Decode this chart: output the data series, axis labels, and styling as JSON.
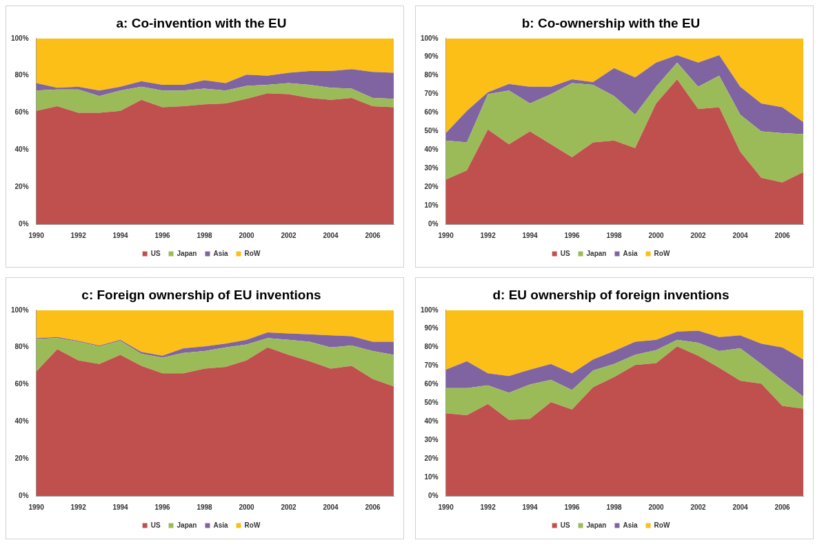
{
  "chart_data": [
    {
      "type": "area",
      "title": "a: Co-invention with the EU",
      "stacked": true,
      "legend": "bottom",
      "x": [
        1990,
        1991,
        1992,
        1993,
        1994,
        1995,
        1996,
        1997,
        1998,
        1999,
        2000,
        2001,
        2002,
        2003,
        2004,
        2005,
        2006,
        2007
      ],
      "xlim": [
        1990,
        2007
      ],
      "xticks": [
        1990,
        1992,
        1994,
        1996,
        1998,
        2000,
        2002,
        2004,
        2006
      ],
      "ylim": [
        0,
        100
      ],
      "yticks": [
        {
          "value": 0,
          "label": "0%"
        },
        {
          "value": 20,
          "label": "20%"
        },
        {
          "value": 40,
          "label": "40%"
        },
        {
          "value": 60,
          "label": "60%"
        },
        {
          "value": 80,
          "label": "80%"
        },
        {
          "value": 100,
          "label": "100%"
        }
      ],
      "series": [
        {
          "name": "US",
          "color": "#c0504d",
          "values": [
            61,
            63.5,
            60,
            60,
            61,
            67,
            63,
            63.5,
            64.5,
            65,
            67.5,
            70.5,
            70,
            68,
            67,
            68,
            63.5,
            63
          ]
        },
        {
          "name": "Japan",
          "color": "#9bbb59",
          "values": [
            11,
            9,
            12.5,
            9,
            11,
            7,
            9,
            8.5,
            8.5,
            7,
            7,
            4.5,
            6,
            7,
            6.5,
            5,
            4.5,
            4.5
          ]
        },
        {
          "name": "Asia",
          "color": "#8064a2",
          "values": [
            4,
            1,
            1.5,
            3,
            2,
            3,
            3,
            3,
            4.5,
            4,
            6,
            5,
            5.5,
            7.5,
            9,
            10.5,
            14,
            14
          ]
        },
        {
          "name": "RoW",
          "color": "#fbbf17",
          "values": [
            24,
            26.5,
            26,
            28,
            26,
            23,
            25,
            25,
            22.5,
            24,
            19.5,
            20,
            18.5,
            17.5,
            17.5,
            16.5,
            18,
            18.5
          ]
        }
      ]
    },
    {
      "type": "area",
      "title": "b: Co-ownership with the EU",
      "stacked": true,
      "legend": "bottom",
      "x": [
        1990,
        1991,
        1992,
        1993,
        1994,
        1995,
        1996,
        1997,
        1998,
        1999,
        2000,
        2001,
        2002,
        2003,
        2004,
        2005,
        2006,
        2007
      ],
      "xlim": [
        1990,
        2007
      ],
      "xticks": [
        1990,
        1992,
        1994,
        1996,
        1998,
        2000,
        2002,
        2004,
        2006
      ],
      "ylim": [
        0,
        100
      ],
      "yticks": [
        {
          "value": 0,
          "label": "0%"
        },
        {
          "value": 10,
          "label": "10%"
        },
        {
          "value": 20,
          "label": "20%"
        },
        {
          "value": 30,
          "label": "30%"
        },
        {
          "value": 40,
          "label": "40%"
        },
        {
          "value": 50,
          "label": "50%"
        },
        {
          "value": 60,
          "label": "60%"
        },
        {
          "value": 70,
          "label": "70%"
        },
        {
          "value": 80,
          "label": "80%"
        },
        {
          "value": 90,
          "label": "90%"
        },
        {
          "value": 100,
          "label": "100%"
        }
      ],
      "series": [
        {
          "name": "US",
          "color": "#c0504d",
          "values": [
            24,
            29,
            51,
            43,
            50,
            43,
            36,
            44,
            45,
            41,
            65,
            78,
            62,
            63,
            39,
            25,
            22.5,
            28
          ]
        },
        {
          "name": "Japan",
          "color": "#9bbb59",
          "values": [
            21,
            15,
            19,
            29,
            15,
            27,
            40,
            31,
            24,
            18,
            9,
            9,
            12,
            17,
            20,
            25,
            26.5,
            20.5
          ]
        },
        {
          "name": "Asia",
          "color": "#8064a2",
          "values": [
            4,
            17,
            1,
            3.5,
            9,
            4,
            2,
            1.5,
            15,
            20,
            13,
            4,
            13,
            11,
            15,
            15,
            14,
            6.5
          ]
        },
        {
          "name": "RoW",
          "color": "#fbbf17",
          "values": [
            51,
            39,
            29,
            24.5,
            26,
            26,
            22,
            23.5,
            16,
            21,
            13,
            9,
            13,
            9,
            26,
            35,
            37,
            45
          ]
        }
      ]
    },
    {
      "type": "area",
      "title": "c: Foreign ownership of EU inventions",
      "stacked": true,
      "legend": "bottom",
      "x": [
        1990,
        1991,
        1992,
        1993,
        1994,
        1995,
        1996,
        1997,
        1998,
        1999,
        2000,
        2001,
        2002,
        2003,
        2004,
        2005,
        2006,
        2007
      ],
      "xlim": [
        1990,
        2007
      ],
      "xticks": [
        1990,
        1992,
        1994,
        1996,
        1998,
        2000,
        2002,
        2004,
        2006
      ],
      "ylim": [
        0,
        100
      ],
      "yticks": [
        {
          "value": 0,
          "label": "0%"
        },
        {
          "value": 20,
          "label": "20%"
        },
        {
          "value": 40,
          "label": "40%"
        },
        {
          "value": 60,
          "label": "60%"
        },
        {
          "value": 80,
          "label": "80%"
        },
        {
          "value": 100,
          "label": "100%"
        }
      ],
      "series": [
        {
          "name": "US",
          "color": "#c0504d",
          "values": [
            67,
            79,
            73,
            71,
            76,
            70,
            66,
            66,
            68.5,
            69.5,
            73,
            80,
            76,
            72.5,
            68.5,
            70,
            63,
            59
          ]
        },
        {
          "name": "Japan",
          "color": "#9bbb59",
          "values": [
            17.5,
            6,
            10,
            9.5,
            7.5,
            6.5,
            8.5,
            11,
            9.5,
            10.5,
            8.5,
            5,
            8,
            10.5,
            11.5,
            11,
            15,
            17
          ]
        },
        {
          "name": "Asia",
          "color": "#8064a2",
          "values": [
            0.5,
            0.5,
            0.5,
            0.5,
            0.5,
            1,
            1,
            2.5,
            2.5,
            2,
            2.5,
            3,
            3.5,
            4,
            6.5,
            5,
            5,
            7
          ]
        },
        {
          "name": "RoW",
          "color": "#fbbf17",
          "values": [
            15,
            14.5,
            16.5,
            19,
            16,
            22.5,
            24.5,
            20.5,
            19.5,
            18,
            16,
            12,
            12.5,
            13,
            13.5,
            14,
            17,
            17
          ]
        }
      ]
    },
    {
      "type": "area",
      "title": "d: EU ownership of foreign inventions",
      "stacked": true,
      "legend": "bottom",
      "x": [
        1990,
        1991,
        1992,
        1993,
        1994,
        1995,
        1996,
        1997,
        1998,
        1999,
        2000,
        2001,
        2002,
        2003,
        2004,
        2005,
        2006,
        2007
      ],
      "xlim": [
        1990,
        2007
      ],
      "xticks": [
        1990,
        1992,
        1994,
        1996,
        1998,
        2000,
        2002,
        2004,
        2006
      ],
      "ylim": [
        0,
        100
      ],
      "yticks": [
        {
          "value": 0,
          "label": "0%"
        },
        {
          "value": 10,
          "label": "10%"
        },
        {
          "value": 20,
          "label": "20%"
        },
        {
          "value": 30,
          "label": "30%"
        },
        {
          "value": 40,
          "label": "40%"
        },
        {
          "value": 50,
          "label": "50%"
        },
        {
          "value": 60,
          "label": "60%"
        },
        {
          "value": 70,
          "label": "70%"
        },
        {
          "value": 80,
          "label": "80%"
        },
        {
          "value": 90,
          "label": "90%"
        },
        {
          "value": 100,
          "label": "100%"
        }
      ],
      "series": [
        {
          "name": "US",
          "color": "#c0504d",
          "values": [
            44.5,
            43.5,
            49.5,
            41,
            41.5,
            50.5,
            46.5,
            58.5,
            64,
            70.5,
            71.5,
            80.5,
            75.5,
            69,
            62,
            60.5,
            48.5,
            47
          ]
        },
        {
          "name": "Japan",
          "color": "#9bbb59",
          "values": [
            13.5,
            14.5,
            10,
            14.5,
            18.5,
            12,
            10.5,
            9,
            7,
            5.5,
            7,
            3.5,
            7,
            9,
            17.5,
            10.5,
            13.5,
            6.5
          ]
        },
        {
          "name": "Asia",
          "color": "#8064a2",
          "values": [
            10,
            14.5,
            6.5,
            9,
            8,
            8.5,
            9,
            6,
            7,
            7,
            5.5,
            4.5,
            6.5,
            7.5,
            7,
            11,
            18,
            20
          ]
        },
        {
          "name": "RoW",
          "color": "#fbbf17",
          "values": [
            32,
            27.5,
            34,
            35.5,
            32,
            29,
            34,
            26.5,
            22,
            17,
            16,
            11.5,
            11,
            14.5,
            13.5,
            18,
            20,
            26.5
          ]
        }
      ]
    }
  ]
}
